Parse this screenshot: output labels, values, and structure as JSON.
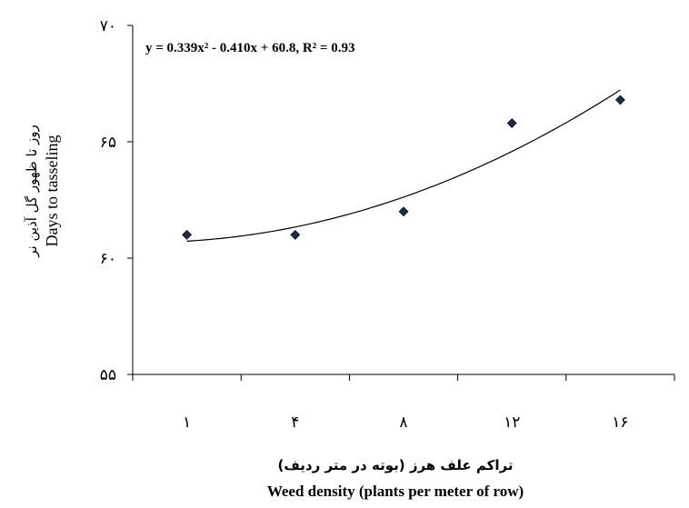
{
  "chart_data": {
    "type": "scatter",
    "categories": [
      "۱",
      "۴",
      "۸",
      "۱۲",
      "۱۶"
    ],
    "y_ticks": [
      {
        "value": 55,
        "label": "۵۵"
      },
      {
        "value": 60,
        "label": "۶۰"
      },
      {
        "value": 65,
        "label": "۶۵"
      },
      {
        "value": 70,
        "label": "۷۰"
      }
    ],
    "ylim": [
      55,
      70
    ],
    "series": [
      {
        "values": [
          61.0,
          61.0,
          62.0,
          65.8,
          66.8
        ],
        "marker": "diamond",
        "color": "#1f2a4a"
      }
    ],
    "trendline": {
      "type": "polynomial",
      "order": 2,
      "coefficients": [
        0.339,
        -0.41,
        60.8
      ],
      "equation": "y = 0.339x² - 0.410x + 60.8, R² = 0.93"
    },
    "ylabel": {
      "fa": "روز تا ظهور گل آذین نر",
      "en": "Days to tasseling"
    },
    "xlabel": {
      "fa": "تراکم علف هرز (بوته در متر ردیف)",
      "en": "Weed density (plants per meter of row)"
    },
    "grid": false
  }
}
